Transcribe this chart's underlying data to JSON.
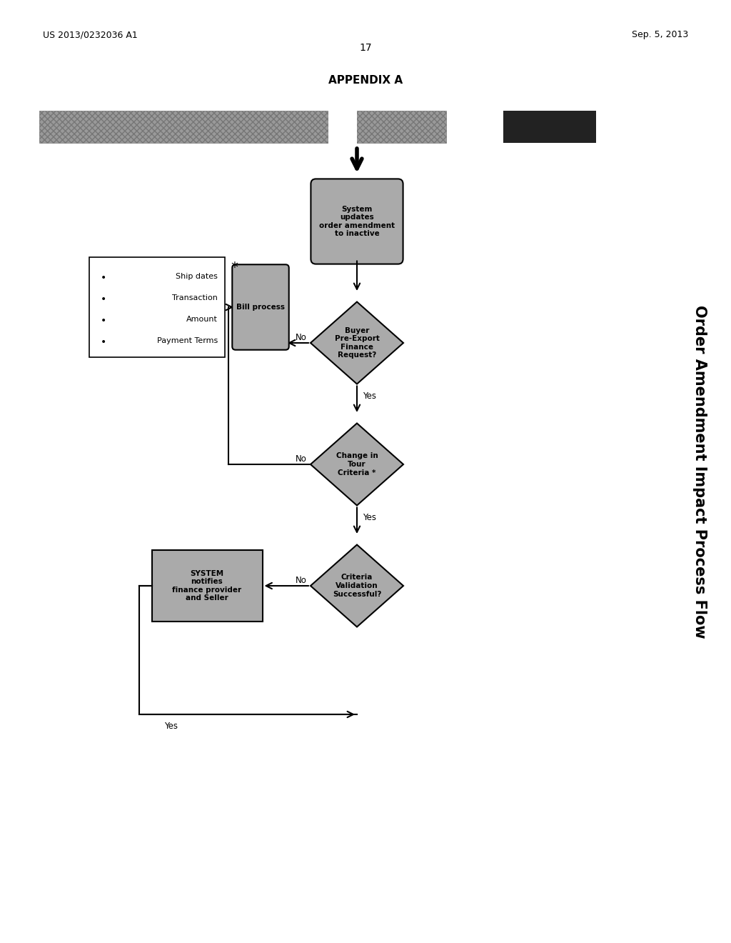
{
  "bg_color": "#ffffff",
  "page_num": "17",
  "patent_left": "US 2013/0232036 A1",
  "patent_right": "Sep. 5, 2013",
  "appendix": "APPENDIX A",
  "title": "Order Amendment Impact Process Flow",
  "gray_color": "#b0b0b0",
  "dark_color": "#2a2a2a",
  "note_lines": [
    "Ship dates",
    "Transaction",
    "Amount",
    "Payment Terms"
  ]
}
